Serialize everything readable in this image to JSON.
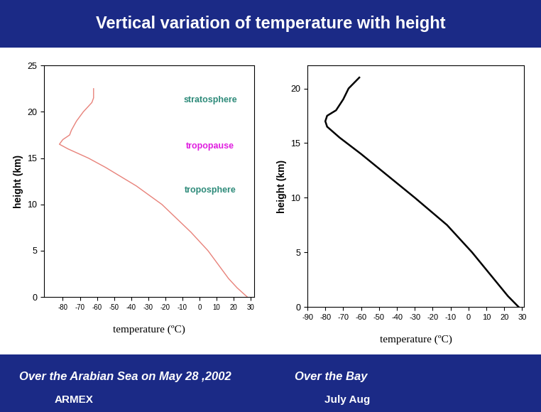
{
  "title": "Vertical variation of temperature with height",
  "chart_data": [
    {
      "type": "line",
      "x_label": "temperature (ºC)",
      "y_label": "height (km)",
      "color": "#e8827a",
      "x": [
        28,
        22,
        17,
        13,
        5,
        -5,
        -22,
        -37,
        -55,
        -65,
        -77,
        -82,
        -80,
        -76,
        -75,
        -72,
        -68,
        -63,
        -62,
        -62
      ],
      "values": [
        0,
        1,
        2,
        3,
        5,
        7,
        10,
        12,
        14,
        15,
        16,
        16.5,
        17,
        17.5,
        18,
        19,
        20,
        21,
        21.5,
        22.5
      ],
      "xlim": [
        -91,
        32
      ],
      "xticks": [
        -80,
        -70,
        -60,
        -50,
        -40,
        -30,
        -20,
        -10,
        0,
        10,
        20,
        30
      ],
      "ylim": [
        0,
        25
      ],
      "yticks": [
        0,
        5,
        10,
        15,
        20,
        25
      ],
      "annotations": [
        {
          "text": "stratosphere",
          "color": "#2e8b7a"
        },
        {
          "text": "tropopause",
          "color": "#e020e0"
        },
        {
          "text": "troposphere",
          "color": "#2e8b7a"
        }
      ]
    },
    {
      "type": "line",
      "x_label": "temperature (ºC)",
      "y_label": "height (km)",
      "color": "#000000",
      "x": [
        28,
        22,
        12,
        2,
        -12,
        -30,
        -45,
        -60,
        -72,
        -79,
        -80,
        -79,
        -74,
        -70,
        -67,
        -61
      ],
      "values": [
        0,
        1,
        3,
        5,
        7.5,
        10,
        12,
        14,
        15.5,
        16.5,
        17,
        17.5,
        18,
        19,
        20,
        21
      ],
      "xlim": [
        -90,
        31
      ],
      "xticks": [
        -90,
        -80,
        -70,
        -60,
        -50,
        -40,
        -30,
        -20,
        -10,
        0,
        10,
        20,
        30
      ],
      "ylim": [
        0,
        22.1
      ],
      "yticks": [
        0,
        5,
        10,
        15,
        20
      ]
    }
  ],
  "captions": [
    [
      "Over the Arabian Sea on May 28 ,2002",
      "ARMEX"
    ],
    [
      "Over the Bay",
      "July Aug"
    ]
  ]
}
